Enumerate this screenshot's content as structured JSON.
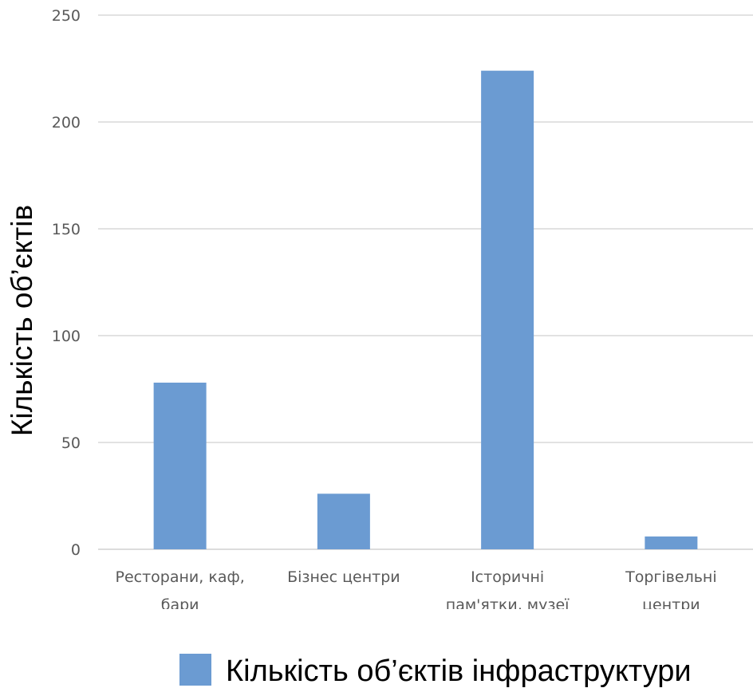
{
  "chart_data": {
    "type": "bar",
    "title": "",
    "xlabel": "",
    "ylabel": "Кількість об’єктів",
    "ylim": [
      0,
      250
    ],
    "yticks": [
      0,
      50,
      100,
      150,
      200,
      250
    ],
    "grid": true,
    "legend_position": "bottom",
    "categories": [
      [
        "Ресторани, каф,",
        "бари"
      ],
      [
        "Бізнес центри"
      ],
      [
        "Історичні",
        "пам'ятки, музеї"
      ],
      [
        "Торгівельні",
        "центри"
      ]
    ],
    "series": [
      {
        "name": "Кількість об’єктів інфраструктури",
        "values": [
          78,
          26,
          224,
          6
        ],
        "color": "#6b9bd2"
      }
    ]
  }
}
